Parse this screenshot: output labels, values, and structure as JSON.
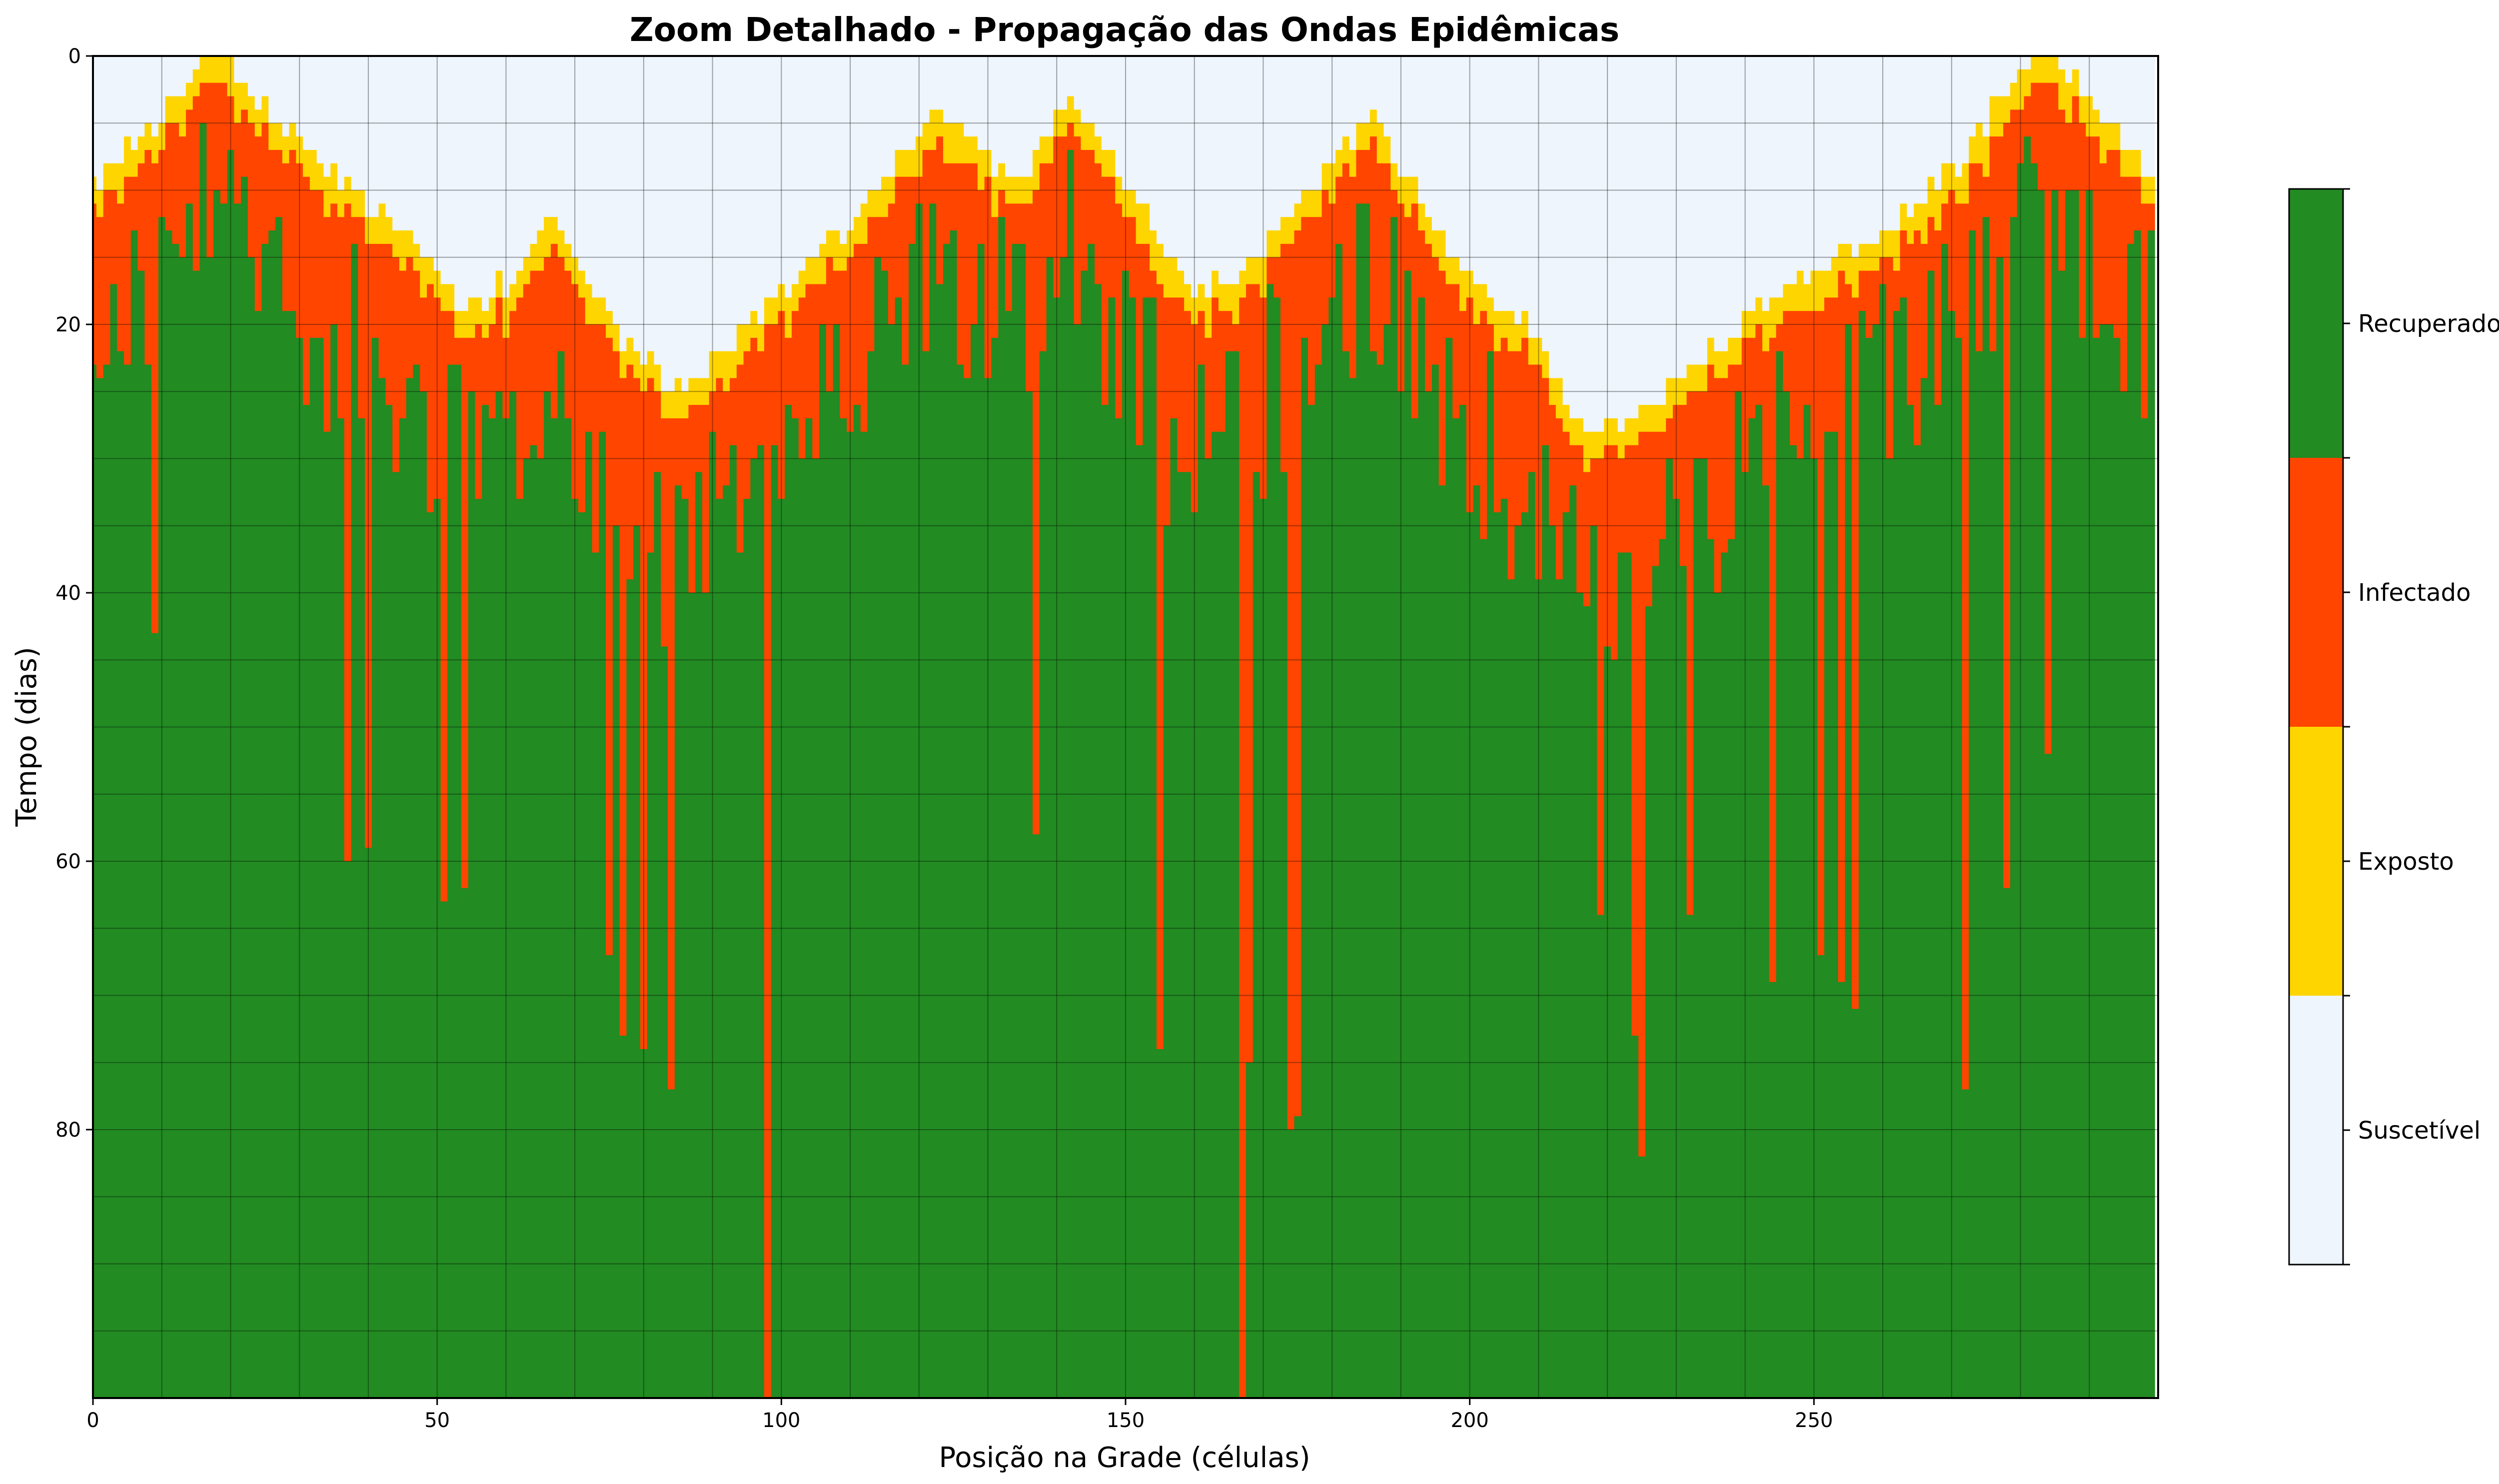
{
  "chart_data": {
    "type": "heatmap",
    "title": "Zoom Detalhado - Propagação das Ondas Epidêmicas",
    "xlabel": "Posição na Grade (células)",
    "ylabel": "Tempo (dias)",
    "xlim": [
      0,
      300
    ],
    "ylim": [
      100,
      0
    ],
    "x_ticks": [
      0,
      50,
      100,
      150,
      200,
      250
    ],
    "y_ticks": [
      0,
      20,
      40,
      60,
      80
    ],
    "grid": true,
    "grid_cell_spacing": 10,
    "states": [
      {
        "code": 0,
        "label": "Suscetível",
        "color": "#eef5fc"
      },
      {
        "code": 1,
        "label": "Exposto",
        "color": "#ffd500"
      },
      {
        "code": 2,
        "label": "Infectado",
        "color": "#ff4500"
      },
      {
        "code": 3,
        "label": "Recuperado",
        "color": "#228b22"
      }
    ],
    "colorbar_labels_top_to_bottom": [
      "Recuperado",
      "Infectado",
      "Exposto",
      "Suscetível"
    ],
    "wave_front_keypoints": {
      "position": [
        0,
        10,
        16,
        19,
        25,
        35,
        45,
        55,
        62,
        67,
        75,
        85,
        92,
        105,
        115,
        122,
        130,
        135,
        142,
        150,
        160,
        170,
        180,
        186,
        195,
        210,
        217,
        225,
        235,
        250,
        260,
        270,
        276,
        282,
        285,
        290,
        295,
        299
      ],
      "exposed_onset_day": [
        9,
        5,
        0,
        0,
        4,
        9,
        13,
        19,
        16,
        12,
        20,
        25,
        22,
        15,
        9,
        4,
        8,
        10,
        3,
        9,
        18,
        15,
        8,
        4,
        13,
        21,
        28,
        27,
        22,
        16,
        13,
        9,
        4,
        0,
        0,
        3,
        7,
        9
      ],
      "exposed_duration_days": 2,
      "typical_infectious_duration_days": 7
    },
    "long_infection_columns": [
      {
        "position": 9,
        "recovery_day": 43
      },
      {
        "position": 37,
        "recovery_day": 60
      },
      {
        "position": 40,
        "recovery_day": 59
      },
      {
        "position": 51,
        "recovery_day": 63
      },
      {
        "position": 54,
        "recovery_day": 62
      },
      {
        "position": 75,
        "recovery_day": 67
      },
      {
        "position": 77,
        "recovery_day": 73
      },
      {
        "position": 80,
        "recovery_day": 74
      },
      {
        "position": 84,
        "recovery_day": 77
      },
      {
        "position": 98,
        "recovery_day": 100
      },
      {
        "position": 137,
        "recovery_day": 58
      },
      {
        "position": 155,
        "recovery_day": 74
      },
      {
        "position": 167,
        "recovery_day": 100
      },
      {
        "position": 168,
        "recovery_day": 75
      },
      {
        "position": 174,
        "recovery_day": 80
      },
      {
        "position": 175,
        "recovery_day": 79
      },
      {
        "position": 219,
        "recovery_day": 64
      },
      {
        "position": 224,
        "recovery_day": 73
      },
      {
        "position": 225,
        "recovery_day": 82
      },
      {
        "position": 232,
        "recovery_day": 64
      },
      {
        "position": 244,
        "recovery_day": 69
      },
      {
        "position": 251,
        "recovery_day": 67
      },
      {
        "position": 254,
        "recovery_day": 69
      },
      {
        "position": 256,
        "recovery_day": 71
      },
      {
        "position": 272,
        "recovery_day": 77
      },
      {
        "position": 278,
        "recovery_day": 62
      },
      {
        "position": 284,
        "recovery_day": 52
      }
    ]
  }
}
